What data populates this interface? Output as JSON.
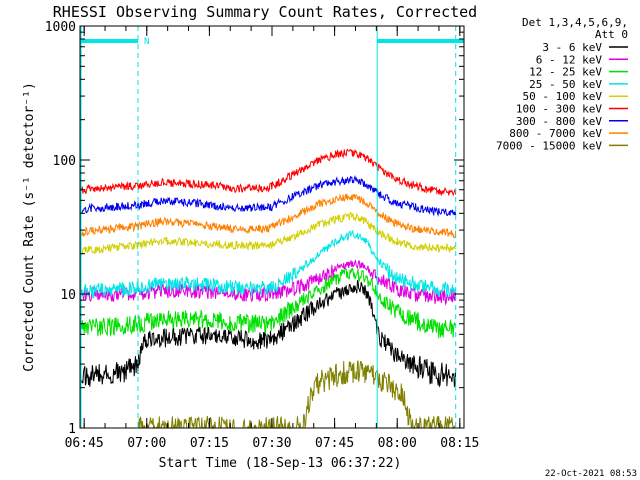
{
  "title": "RHESSI Observing Summary Count Rates, Corrected",
  "xlabel": "Start Time (18-Sep-13 06:37:22)",
  "ylabel": "Corrected Count Rate (s⁻¹ detector⁻¹)",
  "timestamp": "22-Oct-2021 08:53",
  "legend_header": [
    "Det 1,3,4,5,6,9,",
    "Att 0"
  ],
  "chart_data": {
    "type": "line",
    "title": "RHESSI Observing Summary Count Rates, Corrected",
    "xlabel": "Start Time (18-Sep-13 06:37:22)",
    "ylabel": "Corrected Count Rate (s⁻¹ detector⁻¹)",
    "yscale": "log",
    "ylim": [
      1,
      1000
    ],
    "xlim_minutes": [
      6.6,
      98.6
    ],
    "x_ticks": [
      {
        "label": "06:45",
        "minutes": 7.6
      },
      {
        "label": "07:00",
        "minutes": 22.6
      },
      {
        "label": "07:15",
        "minutes": 37.6
      },
      {
        "label": "07:30",
        "minutes": 52.6
      },
      {
        "label": "07:45",
        "minutes": 67.6
      },
      {
        "label": "08:00",
        "minutes": 82.6
      },
      {
        "label": "08:15",
        "minutes": 97.6
      }
    ],
    "y_ticks": [
      {
        "label": "1",
        "value": 1
      },
      {
        "label": "10",
        "value": 10
      },
      {
        "label": "100",
        "value": 100
      },
      {
        "label": "1000",
        "value": 1000
      }
    ],
    "legend_position": "right",
    "grid": false,
    "flag_bar": {
      "label": "N",
      "color": "#00e5e5",
      "segments": [
        [
          6.6,
          20.5
        ],
        [
          77.8,
          98.6
        ]
      ]
    },
    "marker_lines": {
      "dashed": [
        20.5,
        96.6
      ],
      "solid": [
        6.6,
        77.8
      ]
    },
    "series": [
      {
        "name": "3 - 6 keV",
        "color": "#000000",
        "points": [
          [
            7,
            2.5
          ],
          [
            15,
            2.5
          ],
          [
            20.5,
            3
          ],
          [
            22,
            4.5
          ],
          [
            30,
            4.8
          ],
          [
            40,
            5
          ],
          [
            48,
            4.5
          ],
          [
            52,
            4.5
          ],
          [
            58,
            6
          ],
          [
            63,
            8
          ],
          [
            68,
            10
          ],
          [
            72,
            11
          ],
          [
            74,
            11.5
          ],
          [
            76,
            9
          ],
          [
            78,
            5
          ],
          [
            82,
            3.5
          ],
          [
            86,
            3
          ],
          [
            92,
            2.5
          ],
          [
            96.6,
            2.5
          ]
        ]
      },
      {
        "name": "6 - 12 keV",
        "color": "#e000e0",
        "points": [
          [
            7,
            10
          ],
          [
            20.5,
            10
          ],
          [
            26,
            10.5
          ],
          [
            35,
            10.5
          ],
          [
            45,
            10
          ],
          [
            52,
            10
          ],
          [
            58,
            11
          ],
          [
            64,
            13
          ],
          [
            69,
            16
          ],
          [
            72,
            17
          ],
          [
            75,
            16
          ],
          [
            78,
            13
          ],
          [
            82,
            11
          ],
          [
            86,
            10
          ],
          [
            92,
            9.5
          ],
          [
            96.6,
            9.5
          ]
        ]
      },
      {
        "name": "12 - 25 keV",
        "color": "#00e000",
        "points": [
          [
            7,
            5.5
          ],
          [
            20.5,
            6
          ],
          [
            26,
            6.5
          ],
          [
            35,
            6.5
          ],
          [
            45,
            6
          ],
          [
            52,
            6
          ],
          [
            58,
            8
          ],
          [
            64,
            11
          ],
          [
            69,
            13.5
          ],
          [
            72,
            14.5
          ],
          [
            75,
            13.5
          ],
          [
            78,
            10
          ],
          [
            82,
            7.5
          ],
          [
            86,
            6.5
          ],
          [
            92,
            5.5
          ],
          [
            96.6,
            5.5
          ]
        ]
      },
      {
        "name": "25 - 50 keV",
        "color": "#00e5e5",
        "points": [
          [
            7,
            10.5
          ],
          [
            20.5,
            11
          ],
          [
            26,
            12
          ],
          [
            35,
            12
          ],
          [
            45,
            11
          ],
          [
            52,
            11
          ],
          [
            58,
            14
          ],
          [
            64,
            20
          ],
          [
            69,
            26
          ],
          [
            72,
            28
          ],
          [
            75,
            25
          ],
          [
            78,
            18
          ],
          [
            82,
            13
          ],
          [
            86,
            12
          ],
          [
            92,
            11
          ],
          [
            96.6,
            10.5
          ]
        ]
      },
      {
        "name": "50 - 100 keV",
        "color": "#d0d000",
        "points": [
          [
            7,
            21
          ],
          [
            20.5,
            23
          ],
          [
            26,
            25
          ],
          [
            35,
            24
          ],
          [
            45,
            23
          ],
          [
            52,
            23
          ],
          [
            58,
            27
          ],
          [
            64,
            33
          ],
          [
            69,
            37
          ],
          [
            72,
            38
          ],
          [
            75,
            35
          ],
          [
            78,
            29
          ],
          [
            82,
            25
          ],
          [
            86,
            23
          ],
          [
            92,
            22
          ],
          [
            96.6,
            22
          ]
        ]
      },
      {
        "name": "100 - 300 keV",
        "color": "#ff0000",
        "points": [
          [
            7,
            60
          ],
          [
            20.5,
            64
          ],
          [
            26,
            68
          ],
          [
            35,
            66
          ],
          [
            45,
            61
          ],
          [
            52,
            62
          ],
          [
            58,
            80
          ],
          [
            64,
            100
          ],
          [
            69,
            112
          ],
          [
            72,
            113
          ],
          [
            75,
            106
          ],
          [
            78,
            88
          ],
          [
            82,
            72
          ],
          [
            86,
            66
          ],
          [
            92,
            58
          ],
          [
            96.6,
            57
          ]
        ]
      },
      {
        "name": "300 - 800 keV",
        "color": "#0000ee",
        "points": [
          [
            7,
            43
          ],
          [
            20.5,
            46
          ],
          [
            26,
            50
          ],
          [
            35,
            47
          ],
          [
            45,
            44
          ],
          [
            52,
            44
          ],
          [
            58,
            54
          ],
          [
            64,
            65
          ],
          [
            69,
            70
          ],
          [
            72,
            71
          ],
          [
            75,
            67
          ],
          [
            78,
            56
          ],
          [
            82,
            48
          ],
          [
            86,
            45
          ],
          [
            92,
            41
          ],
          [
            96.6,
            40
          ]
        ]
      },
      {
        "name": "800 - 7000 keV",
        "color": "#ff8000",
        "points": [
          [
            7,
            29
          ],
          [
            20.5,
            32
          ],
          [
            26,
            35
          ],
          [
            35,
            33
          ],
          [
            45,
            30
          ],
          [
            52,
            31
          ],
          [
            58,
            38
          ],
          [
            64,
            47
          ],
          [
            69,
            52
          ],
          [
            72,
            53
          ],
          [
            75,
            49
          ],
          [
            78,
            40
          ],
          [
            82,
            34
          ],
          [
            86,
            31
          ],
          [
            92,
            29
          ],
          [
            96.6,
            28
          ]
        ]
      },
      {
        "name": "7000 - 15000 keV",
        "color": "#808000",
        "points": [
          [
            20.5,
            1.0
          ],
          [
            60,
            1.0
          ],
          [
            62,
            1.8
          ],
          [
            64,
            2.2
          ],
          [
            70,
            2.6
          ],
          [
            74,
            2.6
          ],
          [
            77.8,
            2.4
          ],
          [
            80,
            2.2
          ],
          [
            84,
            1.8
          ],
          [
            86,
            1.0
          ],
          [
            96.6,
            1.0
          ]
        ]
      }
    ]
  }
}
